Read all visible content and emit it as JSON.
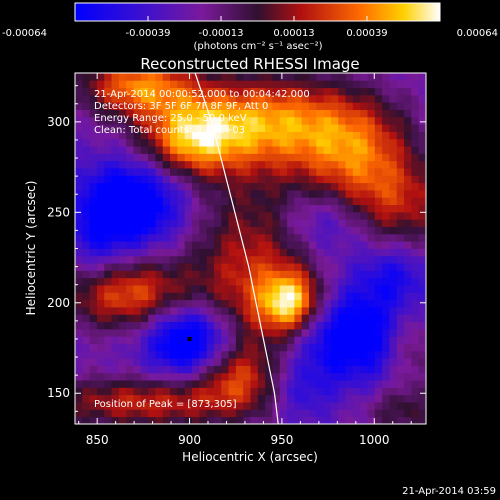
{
  "chart_data": {
    "type": "heatmap",
    "title": "Reconstructed RHESSI Image",
    "xlabel": "Heliocentric X (arcsec)",
    "ylabel": "Heliocentric Y (arcsec)",
    "xlim": [
      838,
      1028
    ],
    "ylim": [
      133,
      327
    ],
    "xticks": [
      850,
      900,
      950,
      1000
    ],
    "yticks": [
      150,
      200,
      250,
      300
    ],
    "colorbar": {
      "ticks": [
        "-0.00064",
        "-0.00039",
        "-0.00013",
        "0.00013",
        "0.00039",
        "0.00064"
      ],
      "min": -0.00064,
      "max": 0.00064,
      "units_line": "(photons cm⁻² s⁻¹ asec⁻²)"
    },
    "annotations": [
      "21-Apr-2014 00:00:52.000 to 00:04:42.000",
      "Detectors: 3F 5F 6F 7F 8F 9F, Att 0",
      "Energy Range: 25.0 - 50.0 keV",
      "Clean: Total counts: 9.42E+03"
    ],
    "peak_label": "Position of Peak = [873,305]",
    "peak": [
      873,
      305
    ],
    "limb_curve": [
      [
        903,
        327
      ],
      [
        912,
        300
      ],
      [
        922,
        260
      ],
      [
        932,
        220
      ],
      [
        940,
        180
      ],
      [
        946,
        150
      ],
      [
        948,
        133
      ]
    ],
    "blobs": [
      {
        "x": 872,
        "y": 320,
        "sx": 22,
        "sy": 12,
        "v": 0.8
      },
      {
        "x": 900,
        "y": 290,
        "sx": 18,
        "sy": 14,
        "v": 0.7
      },
      {
        "x": 940,
        "y": 300,
        "sx": 35,
        "sy": 18,
        "v": 0.85
      },
      {
        "x": 990,
        "y": 285,
        "sx": 22,
        "sy": 20,
        "v": 0.6
      },
      {
        "x": 1010,
        "y": 255,
        "sx": 25,
        "sy": 18,
        "v": 0.55
      },
      {
        "x": 935,
        "y": 215,
        "sx": 25,
        "sy": 40,
        "v": 0.6
      },
      {
        "x": 955,
        "y": 200,
        "sx": 12,
        "sy": 12,
        "v": 0.9
      },
      {
        "x": 865,
        "y": 205,
        "sx": 25,
        "sy": 14,
        "v": 0.75
      },
      {
        "x": 875,
        "y": 145,
        "sx": 40,
        "sy": 10,
        "v": 0.6
      },
      {
        "x": 925,
        "y": 160,
        "sx": 15,
        "sy": 12,
        "v": 0.45
      },
      {
        "x": 1015,
        "y": 140,
        "sx": 15,
        "sy": 10,
        "v": 0.35
      },
      {
        "x": 1020,
        "y": 175,
        "sx": 10,
        "sy": 15,
        "v": 0.35
      },
      {
        "x": 870,
        "y": 255,
        "sx": 18,
        "sy": 16,
        "v": -0.75
      },
      {
        "x": 975,
        "y": 245,
        "sx": 18,
        "sy": 14,
        "v": -0.4
      },
      {
        "x": 900,
        "y": 180,
        "sx": 16,
        "sy": 14,
        "v": -0.85
      },
      {
        "x": 985,
        "y": 182,
        "sx": 22,
        "sy": 18,
        "v": -0.7
      },
      {
        "x": 1010,
        "y": 215,
        "sx": 14,
        "sy": 12,
        "v": -0.35
      },
      {
        "x": 960,
        "y": 150,
        "sx": 12,
        "sy": 12,
        "v": -0.3
      },
      {
        "x": 850,
        "y": 235,
        "sx": 12,
        "sy": 20,
        "v": -0.3
      }
    ]
  },
  "footer_timestamp": "21-Apr-2014 03:59"
}
